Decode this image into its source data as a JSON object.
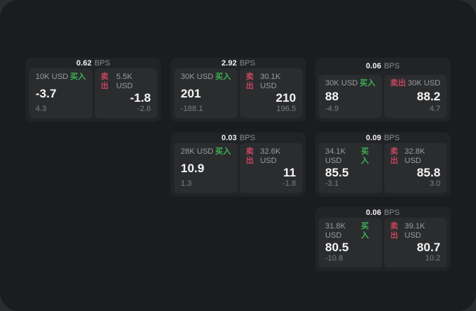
{
  "labels": {
    "bps_suffix": "BPS",
    "buy_label": "买入",
    "sell_label": "卖出"
  },
  "colors": {
    "buy_green": "#3bb257",
    "sell_red": "#c2465e",
    "panel_background": "#1b1c1e",
    "card_background": "#222326",
    "tile_background": "#2b2c2e"
  },
  "cards": [
    {
      "bps_value": "0.62",
      "grid": {
        "row": 1,
        "col": 1
      },
      "buy": {
        "amount": "10K USD",
        "value": "-3.7",
        "change": "4.3"
      },
      "sell": {
        "amount": "5.5K USD",
        "value": "-1.8",
        "change": "-2.6"
      }
    },
    {
      "bps_value": "2.92",
      "grid": {
        "row": 1,
        "col": 2
      },
      "buy": {
        "amount": "30K USD",
        "value": "201",
        "change": "-188.1"
      },
      "sell": {
        "amount": "30.1K USD",
        "value": "210",
        "change": "196.5"
      }
    },
    {
      "bps_value": "0.06",
      "grid": {
        "row": 1,
        "col": 3
      },
      "buy": {
        "amount": "30K USD",
        "value": "88",
        "change": "-4.9"
      },
      "sell": {
        "amount": "30K USD",
        "value": "88.2",
        "change": "4.7"
      }
    },
    {
      "bps_value": "0.03",
      "grid": {
        "row": 2,
        "col": 2
      },
      "buy": {
        "amount": "28K USD",
        "value": "10.9",
        "change": "1.3"
      },
      "sell": {
        "amount": "32.6K USD",
        "value": "11",
        "change": "-1.8"
      }
    },
    {
      "bps_value": "0.09",
      "grid": {
        "row": 2,
        "col": 3
      },
      "buy": {
        "amount": "34.1K USD",
        "value": "85.5",
        "change": "-3.1"
      },
      "sell": {
        "amount": "32.8K USD",
        "value": "85.8",
        "change": "3.0"
      }
    },
    {
      "bps_value": "0.06",
      "grid": {
        "row": 3,
        "col": 3
      },
      "buy": {
        "amount": "31.8K USD",
        "value": "80.5",
        "change": "-10.8"
      },
      "sell": {
        "amount": "39.1K USD",
        "value": "80.7",
        "change": "10.2"
      }
    }
  ]
}
